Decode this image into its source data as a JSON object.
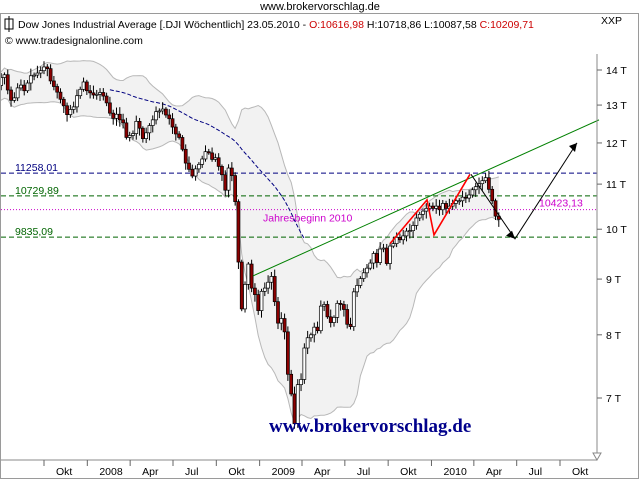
{
  "site": {
    "url": "www.brokervorschlag.de"
  },
  "header": {
    "title": "Dow Jones Industrial Average [.DJI  Wöchentlich]",
    "date": "23.05.2010",
    "open": "O:10616,98",
    "high": "H:10718,86",
    "low": "L:10087,58",
    "close": "C:10209,71",
    "copyright": "© www.tradesignalonline.com",
    "scale_label": "XXP"
  },
  "watermark": "www.brokervorschlag.de",
  "colors": {
    "up_candle": "#ffffff",
    "down_candle": "#8b0000",
    "bollinger": "#b8b8b8",
    "ma_dashed": "#000080",
    "levels": "#006400",
    "jahresbeginn": "#cc00cc",
    "trendline": "#008000",
    "wedge": "#ff0000",
    "forecast": "#000000",
    "watermark": "#00008b",
    "close_value": "#cc0000"
  },
  "chart_data": {
    "type": "candlestick",
    "title": "Dow Jones Industrial Average [.DJI  Wöchentlich]",
    "y_ticks": [
      "14 T",
      "13 T",
      "12 T",
      "11 T",
      "10 T",
      "9 T",
      "8 T",
      "7 T"
    ],
    "y_tick_values": [
      14000,
      13000,
      12000,
      11000,
      10000,
      9000,
      8000,
      7000
    ],
    "y_scale": "log",
    "ylim": [
      6300,
      15400
    ],
    "x_ticks": [
      "Okt",
      "2008",
      "Apr",
      "Jul",
      "Okt",
      "2009",
      "Apr",
      "Jul",
      "Okt",
      "2010",
      "Apr",
      "Jul",
      "Okt"
    ],
    "x_tick_dates": [
      "2007-10-01",
      "2008-01-01",
      "2008-04-01",
      "2008-07-01",
      "2008-10-01",
      "2009-01-01",
      "2009-04-01",
      "2009-07-01",
      "2009-10-01",
      "2010-01-01",
      "2010-04-01",
      "2010-07-01",
      "2010-10-01"
    ],
    "x_range": [
      "2007-06-18",
      "2010-12-31"
    ],
    "last_candle": {
      "date": "2010-05-23",
      "open": 10616.98,
      "high": 10718.86,
      "low": 10087.58,
      "close": 10209.71
    },
    "levels": [
      {
        "label": "11258,01",
        "value": 11258.01,
        "style": "dashed"
      },
      {
        "label": "10729,89",
        "value": 10729.89,
        "style": "dashed"
      },
      {
        "label": "9835,09",
        "value": 9835.09,
        "style": "dashed"
      }
    ],
    "jahresbeginn": {
      "label": "Jahresbeginn 2010",
      "value": 10423.13,
      "value_label": "10423,13"
    },
    "weekly_closes": [
      13300,
      13550,
      13780,
      13860,
      13420,
      13130,
      13200,
      13480,
      13560,
      13400,
      13620,
      13830,
      13850,
      13910,
      13980,
      14090,
      14040,
      13680,
      13520,
      13360,
      13160,
      12980,
      12740,
      12880,
      12950,
      13260,
      13440,
      13650,
      13400,
      13340,
      13280,
      13300,
      13350,
      13250,
      13060,
      12780,
      12640,
      12750,
      12600,
      12520,
      12140,
      12190,
      12240,
      12560,
      12380,
      12110,
      12260,
      12450,
      12600,
      12820,
      12840,
      12890,
      12730,
      12630,
      12410,
      12230,
      12140,
      11840,
      11500,
      11350,
      11190,
      11360,
      11470,
      11600,
      11780,
      11750,
      11590,
      11630,
      11420,
      11220,
      10860,
      11380,
      11200,
      10600,
      9330,
      8450,
      8900,
      9290,
      8830,
      8710,
      8420,
      8770,
      8830,
      8940,
      9050,
      8580,
      8200,
      8280,
      8050,
      7360,
      7060,
      6630,
      7200,
      7280,
      7780,
      7950,
      8000,
      8130,
      8070,
      8500,
      8530,
      8310,
      8210,
      8300,
      8550,
      8530,
      8440,
      8180,
      8140,
      8760,
      8880,
      9010,
      9120,
      9210,
      9310,
      9500,
      9320,
      9590,
      9610,
      9300,
      9650,
      9700,
      9830,
      9780,
      9860,
      9960,
      9970,
      10080,
      10240,
      10320,
      10390,
      10450,
      10500,
      10450,
      10500,
      10420,
      10560,
      10450,
      10500,
      10560,
      10620,
      10620,
      10700,
      10680,
      10750,
      10870,
      10940,
      11010,
      11080,
      11150,
      10880,
      10620,
      10280,
      10210
    ]
  }
}
